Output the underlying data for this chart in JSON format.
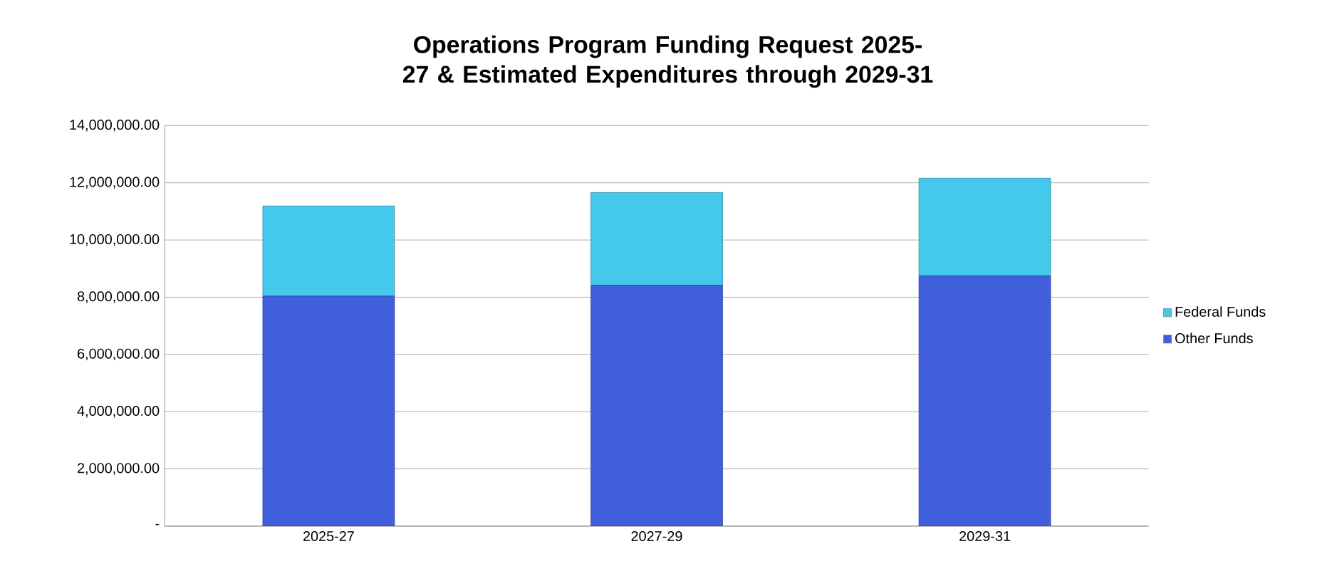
{
  "chart_data": {
    "type": "bar",
    "title": "Operations Program Funding Request 2025-27 & Estimated Expenditures through 2029-31",
    "categories": [
      "2025-27",
      "2027-29",
      "2029-31"
    ],
    "stacked": true,
    "series": [
      {
        "name": "Other Funds",
        "color": "#3f5fdd",
        "values": [
          8040000,
          8420000,
          8750000
        ]
      },
      {
        "name": "Federal Funds",
        "color": "#44c8ec",
        "values": [
          3150000,
          3240000,
          3410000
        ]
      }
    ],
    "ylim": [
      0,
      14000000
    ],
    "yticks": [
      {
        "value": 0,
        "label": "-"
      },
      {
        "value": 2000000,
        "label": "2,000,000.00"
      },
      {
        "value": 4000000,
        "label": "4,000,000.00"
      },
      {
        "value": 6000000,
        "label": "6,000,000.00"
      },
      {
        "value": 8000000,
        "label": "8,000,000.00"
      },
      {
        "value": 10000000,
        "label": "10,000,000.00"
      },
      {
        "value": 12000000,
        "label": "12,000,000.00"
      },
      {
        "value": 14000000,
        "label": "14,000,000.00"
      }
    ],
    "grid": "y",
    "legend": "right"
  }
}
